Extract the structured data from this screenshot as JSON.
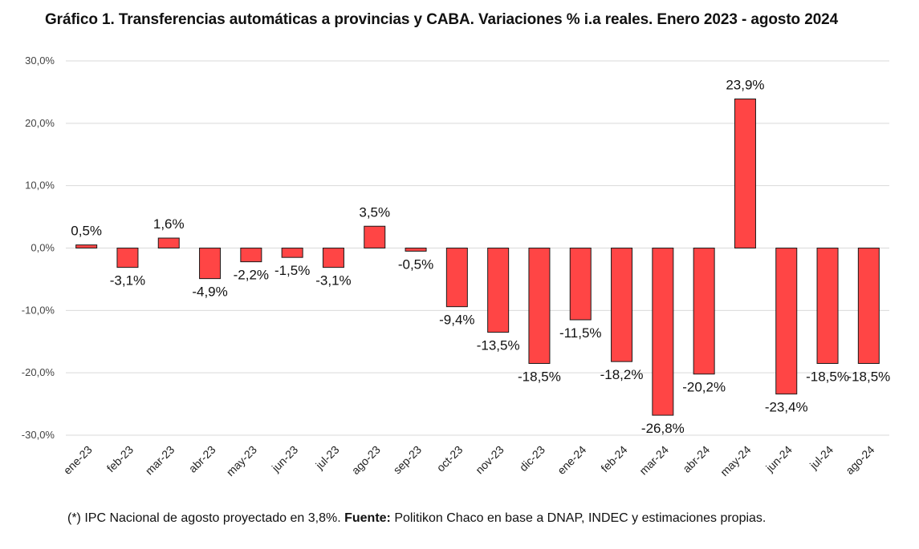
{
  "title": "Gráfico 1. Transferencias automáticas a provincias y CABA. Variaciones % i.a reales. Enero 2023 - agosto 2024",
  "footnote": {
    "prefix": "(*) IPC Nacional de agosto proyectado en 3,8%. ",
    "source_label": "Fuente:",
    "source_text": " Politikon Chaco en base a DNAP, INDEC y estimaciones propias."
  },
  "colors": {
    "bar": "#ff4545",
    "bar_stroke": "#1a1a1a",
    "grid": "#d9d9d9"
  },
  "chart_data": {
    "type": "bar",
    "categories": [
      "ene-23",
      "feb-23",
      "mar-23",
      "abr-23",
      "may-23",
      "jun-23",
      "jul-23",
      "ago-23",
      "sep-23",
      "oct-23",
      "nov-23",
      "dic-23",
      "ene-24",
      "feb-24",
      "mar-24",
      "abr-24",
      "may-24",
      "jun-24",
      "jul-24",
      "ago-24"
    ],
    "values": [
      0.5,
      -3.1,
      1.6,
      -4.9,
      -2.2,
      -1.5,
      -3.1,
      3.5,
      -0.5,
      -9.4,
      -13.5,
      -18.5,
      -11.5,
      -18.2,
      -26.8,
      -20.2,
      23.9,
      -23.4,
      -18.5,
      -18.5
    ],
    "labels": [
      "0,5%",
      "-3,1%",
      "1,6%",
      "-4,9%",
      "-2,2%",
      "-1,5%",
      "-3,1%",
      "3,5%",
      "-0,5%",
      "-9,4%",
      "-13,5%",
      "-18,5%",
      "-11,5%",
      "-18,2%",
      "-26,8%",
      "-20,2%",
      "23,9%",
      "-23,4%",
      "-18,5%",
      "-18,5%"
    ],
    "yticks": [
      30,
      20,
      10,
      0,
      -10,
      -20,
      -30
    ],
    "ytick_labels": [
      "30,0%",
      "20,0%",
      "10,0%",
      "0,0%",
      "-10,0%",
      "-20,0%",
      "-30,0%"
    ],
    "ylim": [
      -30,
      30
    ],
    "grid": true,
    "legend": "none"
  }
}
